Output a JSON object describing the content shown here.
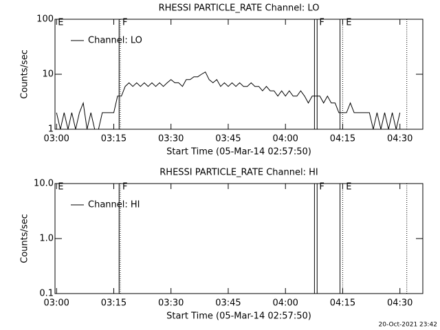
{
  "chart_data": [
    {
      "type": "line",
      "title": "RHESSI PARTICLE_RATE Channel: LO",
      "x_label": "Start Time (05-Mar-14 02:57:50)",
      "y_label": "Counts/sec",
      "log_y": true,
      "color": "#000000",
      "xlim": [
        -0.4,
        96
      ],
      "xticks": [
        {
          "value": 0,
          "label": "03:00"
        },
        {
          "value": 15,
          "label": "03:15"
        },
        {
          "value": 30,
          "label": "03:30"
        },
        {
          "value": 45,
          "label": "03:45"
        },
        {
          "value": 60,
          "label": "04:00"
        },
        {
          "value": 75,
          "label": "04:15"
        },
        {
          "value": 90,
          "label": "04:30"
        }
      ],
      "ylim": [
        1,
        100
      ],
      "yticks": [
        1,
        10,
        100
      ],
      "markers": [
        {
          "x": 16.4,
          "style": "solid"
        },
        {
          "x": 16.7,
          "style": "dotted"
        },
        {
          "x": 67.6,
          "style": "solid"
        },
        {
          "x": 68.3,
          "style": "solid"
        },
        {
          "x": 74.3,
          "style": "solid"
        },
        {
          "x": 75,
          "style": "dotted"
        },
        {
          "x": 91.8,
          "style": "dotted"
        }
      ],
      "marker_labels": [
        {
          "x": 0,
          "text": "E"
        },
        {
          "x": 16.9,
          "text": "F"
        },
        {
          "x": 68.5,
          "text": "F"
        },
        {
          "x": 75.5,
          "text": "E"
        }
      ],
      "series": [
        {
          "name": "Channel: LO",
          "color": "#000000",
          "x": [
            0,
            1,
            2,
            3,
            4,
            5,
            6,
            7,
            8,
            9,
            10,
            11,
            12,
            13,
            14,
            15,
            16,
            17,
            18,
            19,
            20,
            21,
            22,
            23,
            24,
            25,
            26,
            27,
            28,
            29,
            30,
            31,
            32,
            33,
            34,
            35,
            36,
            37,
            38,
            39,
            40,
            41,
            42,
            43,
            44,
            45,
            46,
            47,
            48,
            49,
            50,
            51,
            52,
            53,
            54,
            55,
            56,
            57,
            58,
            59,
            60,
            61,
            62,
            63,
            64,
            65,
            66,
            67,
            68,
            69,
            70,
            71,
            72,
            73,
            74,
            75,
            76,
            77,
            78,
            79,
            80,
            81,
            82,
            83,
            84,
            85,
            86,
            87,
            88,
            89,
            90
          ],
          "values": [
            2,
            1,
            2,
            1,
            2,
            1,
            2,
            3,
            1,
            2,
            1,
            1,
            2,
            2,
            2,
            2,
            4,
            4,
            6,
            7,
            6,
            7,
            6,
            7,
            6,
            7,
            6,
            7,
            6,
            7,
            8,
            7,
            7,
            6,
            8,
            8,
            9,
            9,
            10,
            11,
            8,
            7,
            8,
            6,
            7,
            6,
            7,
            6,
            7,
            6,
            6,
            7,
            6,
            6,
            5,
            6,
            5,
            5,
            4,
            5,
            4,
            5,
            4,
            4,
            5,
            4,
            3,
            4,
            4,
            4,
            3,
            4,
            3,
            3,
            2,
            2,
            2,
            3,
            2,
            2,
            2,
            2,
            2,
            1,
            2,
            1,
            2,
            1,
            2,
            1,
            2
          ]
        }
      ]
    },
    {
      "type": "line",
      "title": "RHESSI PARTICLE_RATE Channel: HI",
      "x_label": "Start Time (05-Mar-14 02:57:50)",
      "y_label": "Counts/sec",
      "log_y": true,
      "color": "#000000",
      "xlim": [
        -0.4,
        96
      ],
      "xticks": [
        {
          "value": 0,
          "label": "03:00"
        },
        {
          "value": 15,
          "label": "03:15"
        },
        {
          "value": 30,
          "label": "03:30"
        },
        {
          "value": 45,
          "label": "03:45"
        },
        {
          "value": 60,
          "label": "04:00"
        },
        {
          "value": 75,
          "label": "04:15"
        },
        {
          "value": 90,
          "label": "04:30"
        }
      ],
      "ylim": [
        0.1,
        10
      ],
      "yticks": [
        0.1,
        {
          "value": 1,
          "label": "1.0"
        },
        {
          "value": 10,
          "label": "10.0"
        }
      ],
      "markers": [
        {
          "x": 16.4,
          "style": "solid"
        },
        {
          "x": 16.7,
          "style": "dotted"
        },
        {
          "x": 67.6,
          "style": "solid"
        },
        {
          "x": 68.3,
          "style": "solid"
        },
        {
          "x": 74.3,
          "style": "solid"
        },
        {
          "x": 75,
          "style": "dotted"
        },
        {
          "x": 91.8,
          "style": "dotted"
        }
      ],
      "marker_labels": [
        {
          "x": 0,
          "text": "E"
        },
        {
          "x": 16.9,
          "text": "F"
        },
        {
          "x": 68.5,
          "text": "F"
        },
        {
          "x": 75.5,
          "text": "E"
        }
      ],
      "series": [
        {
          "name": "Channel: HI",
          "color": "#000000",
          "x": [],
          "values": []
        }
      ]
    }
  ],
  "footer": "20-Oct-2021 23:42"
}
